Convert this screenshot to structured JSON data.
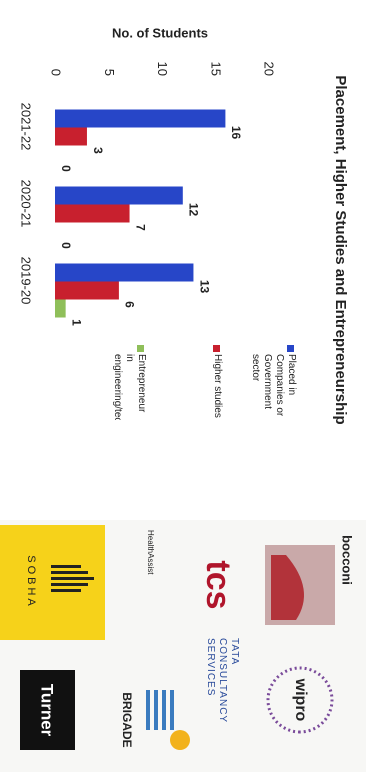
{
  "chart_data": {
    "type": "bar",
    "title": "Placement, Higher Studies and Entrepreneurship",
    "y_label": "No. of Students",
    "categories": [
      "2021-22",
      "2020-21",
      "2019-20"
    ],
    "series": [
      {
        "name": "Placed in Companies or Government sector",
        "color": "#2746c8",
        "values": [
          16,
          12,
          13
        ]
      },
      {
        "name": "Higher studies",
        "color": "#c8202e",
        "values": [
          3,
          7,
          6
        ]
      },
      {
        "name": "Entrepreneur in engineering/technology",
        "color": "#8fbf5a",
        "values": [
          0,
          0,
          1
        ]
      }
    ],
    "ylim": [
      0,
      20
    ],
    "yticks": [
      0,
      5,
      10,
      15,
      20
    ],
    "grid": false,
    "legend": "right"
  },
  "logos": [
    "bocconi",
    "wipro",
    "tcs",
    "TATA CONSULTANCY SERVICES",
    "HealthAssist",
    "BRIGADE",
    "SOBHA",
    "Turner"
  ]
}
